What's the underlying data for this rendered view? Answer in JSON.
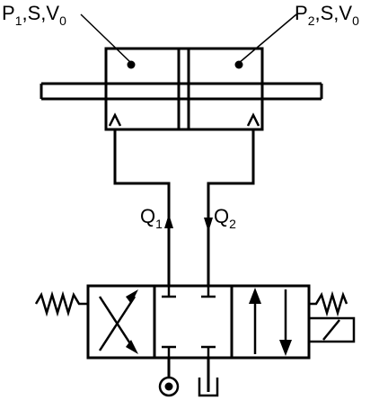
{
  "labels": {
    "chamber_left": {
      "main": "P",
      "sub": "1",
      "rest": ",S,V",
      "sub2": "0"
    },
    "chamber_right": {
      "main": "P",
      "sub": "2",
      "rest": ",S,V",
      "sub2": "0"
    },
    "flow_left": {
      "main": "Q",
      "sub": "1"
    },
    "flow_right": {
      "main": "Q",
      "sub": "2"
    }
  },
  "colors": {
    "stroke": "#000000",
    "background": "#ffffff"
  }
}
